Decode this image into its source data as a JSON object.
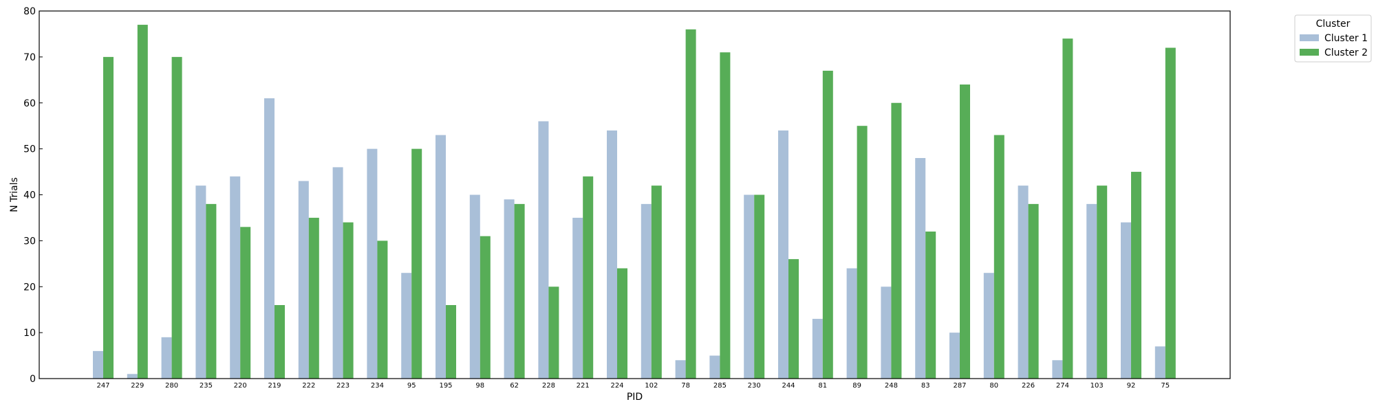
{
  "chart_data": {
    "type": "bar",
    "xlabel": "PID",
    "ylabel": "N Trials",
    "ylim": [
      0,
      80
    ],
    "yticks": [
      0,
      10,
      20,
      30,
      40,
      50,
      60,
      70,
      80
    ],
    "grid": false,
    "legend": {
      "title": "Cluster",
      "placement": "outside top-right"
    },
    "categories": [
      "247",
      "229",
      "280",
      "235",
      "220",
      "219",
      "222",
      "223",
      "234",
      "95",
      "195",
      "98",
      "62",
      "228",
      "221",
      "224",
      "102",
      "78",
      "285",
      "230",
      "244",
      "81",
      "89",
      "248",
      "83",
      "287",
      "80",
      "226",
      "274",
      "103",
      "92",
      "75"
    ],
    "series": [
      {
        "name": "Cluster 1",
        "color": "#a9bfd8",
        "values": [
          6,
          1,
          9,
          42,
          44,
          61,
          43,
          46,
          50,
          23,
          53,
          40,
          39,
          56,
          35,
          54,
          38,
          4,
          5,
          40,
          54,
          13,
          24,
          20,
          48,
          10,
          23,
          42,
          4,
          38,
          34,
          7
        ]
      },
      {
        "name": "Cluster 2",
        "color": "#57ad57",
        "values": [
          70,
          77,
          70,
          38,
          33,
          16,
          35,
          34,
          30,
          50,
          16,
          31,
          38,
          20,
          44,
          24,
          42,
          76,
          71,
          40,
          26,
          67,
          55,
          60,
          32,
          64,
          53,
          38,
          74,
          42,
          45,
          72
        ]
      }
    ]
  }
}
